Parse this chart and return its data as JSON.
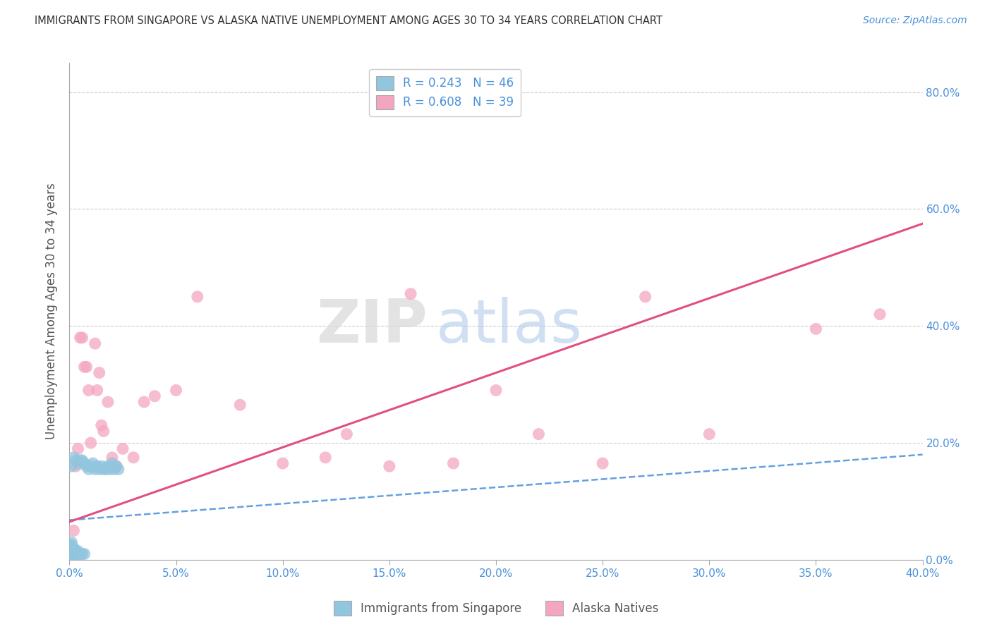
{
  "title": "IMMIGRANTS FROM SINGAPORE VS ALASKA NATIVE UNEMPLOYMENT AMONG AGES 30 TO 34 YEARS CORRELATION CHART",
  "source": "Source: ZipAtlas.com",
  "ylabel": "Unemployment Among Ages 30 to 34 years",
  "xlim": [
    0.0,
    0.4
  ],
  "ylim": [
    0.0,
    0.85
  ],
  "xticks": [
    0.0,
    0.05,
    0.1,
    0.15,
    0.2,
    0.25,
    0.3,
    0.35,
    0.4
  ],
  "yticks": [
    0.0,
    0.2,
    0.4,
    0.6,
    0.8
  ],
  "blue_R": 0.243,
  "blue_N": 46,
  "pink_R": 0.608,
  "pink_N": 39,
  "blue_color": "#92c5de",
  "pink_color": "#f4a6c0",
  "blue_line_color": "#4a90d9",
  "pink_line_color": "#e05080",
  "legend_blue_label": "Immigrants from Singapore",
  "legend_pink_label": "Alaska Natives",
  "watermark_zip": "ZIP",
  "watermark_atlas": "atlas",
  "blue_x": [
    0.0,
    0.0,
    0.0,
    0.0,
    0.0,
    0.001,
    0.001,
    0.001,
    0.001,
    0.001,
    0.001,
    0.001,
    0.002,
    0.002,
    0.002,
    0.002,
    0.002,
    0.003,
    0.003,
    0.003,
    0.003,
    0.004,
    0.004,
    0.004,
    0.005,
    0.005,
    0.006,
    0.006,
    0.007,
    0.007,
    0.008,
    0.009,
    0.01,
    0.011,
    0.012,
    0.013,
    0.014,
    0.015,
    0.016,
    0.017,
    0.018,
    0.019,
    0.02,
    0.021,
    0.022,
    0.023
  ],
  "blue_y": [
    0.005,
    0.01,
    0.015,
    0.02,
    0.025,
    0.005,
    0.01,
    0.015,
    0.02,
    0.025,
    0.03,
    0.16,
    0.005,
    0.01,
    0.015,
    0.02,
    0.175,
    0.005,
    0.01,
    0.015,
    0.17,
    0.01,
    0.015,
    0.165,
    0.01,
    0.17,
    0.01,
    0.17,
    0.01,
    0.165,
    0.16,
    0.155,
    0.16,
    0.165,
    0.155,
    0.16,
    0.155,
    0.16,
    0.155,
    0.155,
    0.16,
    0.155,
    0.165,
    0.155,
    0.16,
    0.155
  ],
  "pink_x": [
    0.0,
    0.001,
    0.002,
    0.003,
    0.004,
    0.005,
    0.006,
    0.007,
    0.008,
    0.009,
    0.01,
    0.012,
    0.013,
    0.014,
    0.015,
    0.016,
    0.018,
    0.02,
    0.022,
    0.025,
    0.03,
    0.035,
    0.04,
    0.05,
    0.06,
    0.08,
    0.1,
    0.12,
    0.13,
    0.15,
    0.16,
    0.18,
    0.2,
    0.22,
    0.25,
    0.27,
    0.3,
    0.35,
    0.38
  ],
  "pink_y": [
    0.01,
    0.005,
    0.05,
    0.16,
    0.19,
    0.38,
    0.38,
    0.33,
    0.33,
    0.29,
    0.2,
    0.37,
    0.29,
    0.32,
    0.23,
    0.22,
    0.27,
    0.175,
    0.16,
    0.19,
    0.175,
    0.27,
    0.28,
    0.29,
    0.45,
    0.265,
    0.165,
    0.175,
    0.215,
    0.16,
    0.455,
    0.165,
    0.29,
    0.215,
    0.165,
    0.45,
    0.215,
    0.395,
    0.42
  ],
  "blue_trend_x": [
    0.0,
    0.4
  ],
  "blue_trend_y": [
    0.068,
    0.18
  ],
  "pink_trend_x": [
    0.0,
    0.4
  ],
  "pink_trend_y": [
    0.065,
    0.575
  ]
}
